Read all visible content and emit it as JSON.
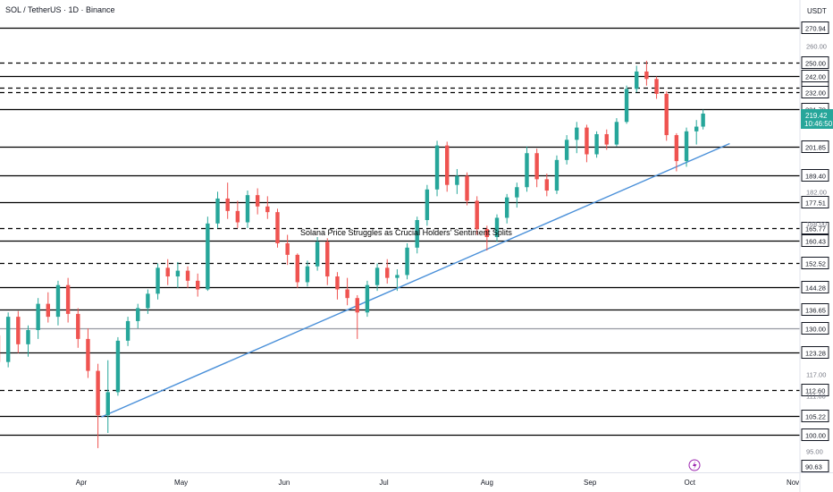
{
  "header": {
    "symbol": "SOL / TetherUS · 1D · Binance",
    "currency": "USDT"
  },
  "annotation": {
    "text": "Solana Price Struggles as Crucial Holders' Sentiment Splits"
  },
  "colors": {
    "up": "#26a69a",
    "down": "#ef5350",
    "trendline": "#4a90d9",
    "level": "#000000",
    "last_price_bg": "#26a69a"
  },
  "last_price": {
    "value": "219.42",
    "countdown": "10:46:50"
  },
  "chart_data": {
    "type": "candlestick",
    "title": "",
    "y_axis_ticks": [
      {
        "value": 260.0,
        "label": "260.00"
      },
      {
        "value": 182.0,
        "label": "182.00"
      },
      {
        "value": 168.0,
        "label": "168.00"
      },
      {
        "value": 117.0,
        "label": "117.00"
      },
      {
        "value": 111.0,
        "label": "111.00"
      },
      {
        "value": 95.0,
        "label": "95.00"
      }
    ],
    "x_axis_ticks": [
      {
        "label": "Apr",
        "date": "2025-04-01"
      },
      {
        "label": "May",
        "date": "2025-05-01"
      },
      {
        "label": "Jun",
        "date": "2025-06-01"
      },
      {
        "label": "Jul",
        "date": "2025-07-01"
      },
      {
        "label": "Aug",
        "date": "2025-08-01"
      },
      {
        "label": "Sep",
        "date": "2025-09-01"
      },
      {
        "label": "Oct",
        "date": "2025-10-01"
      },
      {
        "label": "Nov",
        "date": "2025-11-01"
      }
    ],
    "horizontal_levels": [
      {
        "value": 270.94,
        "label": "270.94",
        "style": "solid"
      },
      {
        "value": 250.0,
        "label": "250.00",
        "style": "dashed"
      },
      {
        "value": 242.0,
        "label": "242.00",
        "style": "solid"
      },
      {
        "value": 235.0,
        "label": "235.00",
        "style": "dashed"
      },
      {
        "value": 232.0,
        "label": "232.00",
        "style": "dashed"
      },
      {
        "value": 221.78,
        "label": "221.78",
        "style": "solid"
      },
      {
        "value": 201.85,
        "label": "201.85",
        "style": "solid"
      },
      {
        "value": 189.4,
        "label": "189.40",
        "style": "solid"
      },
      {
        "value": 177.51,
        "label": "177.51",
        "style": "solid"
      },
      {
        "value": 165.77,
        "label": "165.77",
        "style": "dashed"
      },
      {
        "value": 160.43,
        "label": "160.43",
        "style": "solid"
      },
      {
        "value": 152.52,
        "label": "152.52",
        "style": "dashed"
      },
      {
        "value": 144.28,
        "label": "144.28",
        "style": "solid"
      },
      {
        "value": 136.65,
        "label": "136.65",
        "style": "solid"
      },
      {
        "value": 130.0,
        "label": "130.00",
        "style": "solid_gray"
      },
      {
        "value": 123.28,
        "label": "123.28",
        "style": "solid"
      },
      {
        "value": 112.6,
        "label": "112.60",
        "style": "dashed"
      },
      {
        "value": 105.22,
        "label": "105.22",
        "style": "solid"
      },
      {
        "value": 100.0,
        "label": "100.00",
        "style": "solid"
      },
      {
        "value": 90.63,
        "label": "90.63",
        "style": "box_bottom"
      }
    ],
    "trendline": [
      {
        "date": "2025-04-07",
        "price": 105.0
      },
      {
        "date": "2025-10-13",
        "price": 203.5
      }
    ],
    "candles": [
      {
        "date": "2025-03-01",
        "o": 125.0,
        "h": 135.5,
        "l": 120.0,
        "c": 132.5
      },
      {
        "date": "2025-03-04",
        "o": 132.5,
        "h": 137.0,
        "l": 125.0,
        "c": 128.0
      },
      {
        "date": "2025-03-07",
        "o": 128.0,
        "h": 129.5,
        "l": 117.0,
        "c": 120.5
      },
      {
        "date": "2025-03-10",
        "o": 120.5,
        "h": 135.5,
        "l": 119.0,
        "c": 134.0
      },
      {
        "date": "2025-03-13",
        "o": 134.0,
        "h": 136.0,
        "l": 123.0,
        "c": 125.5
      },
      {
        "date": "2025-03-16",
        "o": 125.5,
        "h": 131.0,
        "l": 122.0,
        "c": 129.5
      },
      {
        "date": "2025-03-19",
        "o": 129.5,
        "h": 140.5,
        "l": 127.0,
        "c": 138.5
      },
      {
        "date": "2025-03-22",
        "o": 138.5,
        "h": 142.5,
        "l": 132.0,
        "c": 134.0
      },
      {
        "date": "2025-03-25",
        "o": 134.0,
        "h": 146.5,
        "l": 131.0,
        "c": 145.0
      },
      {
        "date": "2025-03-28",
        "o": 145.0,
        "h": 147.5,
        "l": 132.0,
        "c": 135.0
      },
      {
        "date": "2025-03-31",
        "o": 135.0,
        "h": 137.0,
        "l": 124.5,
        "c": 127.0
      },
      {
        "date": "2025-04-03",
        "o": 127.0,
        "h": 130.0,
        "l": 116.0,
        "c": 118.0
      },
      {
        "date": "2025-04-06",
        "o": 118.0,
        "h": 120.0,
        "l": 96.0,
        "c": 105.5
      },
      {
        "date": "2025-04-09",
        "o": 105.5,
        "h": 121.0,
        "l": 100.5,
        "c": 112.0
      },
      {
        "date": "2025-04-12",
        "o": 112.0,
        "h": 127.5,
        "l": 111.0,
        "c": 126.5
      },
      {
        "date": "2025-04-15",
        "o": 126.5,
        "h": 134.0,
        "l": 125.0,
        "c": 132.5
      },
      {
        "date": "2025-04-18",
        "o": 132.5,
        "h": 138.5,
        "l": 130.0,
        "c": 137.0
      },
      {
        "date": "2025-04-21",
        "o": 137.0,
        "h": 143.5,
        "l": 135.0,
        "c": 142.0
      },
      {
        "date": "2025-04-24",
        "o": 142.0,
        "h": 152.5,
        "l": 140.0,
        "c": 151.0
      },
      {
        "date": "2025-04-27",
        "o": 151.0,
        "h": 154.0,
        "l": 145.0,
        "c": 148.0
      },
      {
        "date": "2025-04-30",
        "o": 148.0,
        "h": 153.0,
        "l": 144.0,
        "c": 150.0
      },
      {
        "date": "2025-05-03",
        "o": 150.0,
        "h": 151.5,
        "l": 144.0,
        "c": 146.5
      },
      {
        "date": "2025-05-06",
        "o": 146.5,
        "h": 149.0,
        "l": 141.0,
        "c": 143.5
      },
      {
        "date": "2025-05-09",
        "o": 143.5,
        "h": 171.0,
        "l": 143.0,
        "c": 168.0
      },
      {
        "date": "2025-05-12",
        "o": 168.0,
        "h": 182.0,
        "l": 166.0,
        "c": 179.0
      },
      {
        "date": "2025-05-15",
        "o": 179.0,
        "h": 186.0,
        "l": 170.0,
        "c": 173.5
      },
      {
        "date": "2025-05-18",
        "o": 173.5,
        "h": 178.0,
        "l": 166.0,
        "c": 168.5
      },
      {
        "date": "2025-05-21",
        "o": 168.5,
        "h": 182.5,
        "l": 166.0,
        "c": 180.5
      },
      {
        "date": "2025-05-24",
        "o": 180.5,
        "h": 183.5,
        "l": 172.0,
        "c": 175.5
      },
      {
        "date": "2025-05-27",
        "o": 175.5,
        "h": 180.0,
        "l": 170.0,
        "c": 173.0
      },
      {
        "date": "2025-05-30",
        "o": 173.0,
        "h": 174.5,
        "l": 158.0,
        "c": 159.5
      },
      {
        "date": "2025-06-02",
        "o": 159.5,
        "h": 163.0,
        "l": 152.0,
        "c": 155.5
      },
      {
        "date": "2025-06-05",
        "o": 155.5,
        "h": 156.0,
        "l": 144.0,
        "c": 146.0
      },
      {
        "date": "2025-06-08",
        "o": 146.0,
        "h": 153.5,
        "l": 144.5,
        "c": 151.5
      },
      {
        "date": "2025-06-11",
        "o": 151.5,
        "h": 162.0,
        "l": 150.0,
        "c": 160.0
      },
      {
        "date": "2025-06-14",
        "o": 160.0,
        "h": 161.5,
        "l": 145.0,
        "c": 148.0
      },
      {
        "date": "2025-06-17",
        "o": 148.0,
        "h": 149.5,
        "l": 140.0,
        "c": 143.5
      },
      {
        "date": "2025-06-20",
        "o": 143.5,
        "h": 147.5,
        "l": 138.0,
        "c": 140.5
      },
      {
        "date": "2025-06-23",
        "o": 140.5,
        "h": 141.5,
        "l": 127.0,
        "c": 135.5
      },
      {
        "date": "2025-06-26",
        "o": 135.5,
        "h": 146.5,
        "l": 134.0,
        "c": 145.0
      },
      {
        "date": "2025-06-29",
        "o": 145.0,
        "h": 152.5,
        "l": 143.0,
        "c": 151.0
      },
      {
        "date": "2025-07-02",
        "o": 151.0,
        "h": 154.0,
        "l": 145.5,
        "c": 147.5
      },
      {
        "date": "2025-07-05",
        "o": 147.5,
        "h": 150.5,
        "l": 143.0,
        "c": 148.5
      },
      {
        "date": "2025-07-08",
        "o": 148.5,
        "h": 159.5,
        "l": 147.0,
        "c": 158.0
      },
      {
        "date": "2025-07-11",
        "o": 158.0,
        "h": 171.0,
        "l": 156.0,
        "c": 169.5
      },
      {
        "date": "2025-07-14",
        "o": 169.5,
        "h": 185.0,
        "l": 167.0,
        "c": 183.0
      },
      {
        "date": "2025-07-17",
        "o": 183.0,
        "h": 205.0,
        "l": 180.0,
        "c": 202.5
      },
      {
        "date": "2025-07-20",
        "o": 202.5,
        "h": 204.5,
        "l": 182.0,
        "c": 185.0
      },
      {
        "date": "2025-07-23",
        "o": 185.0,
        "h": 192.0,
        "l": 181.0,
        "c": 189.0
      },
      {
        "date": "2025-07-26",
        "o": 189.0,
        "h": 190.5,
        "l": 176.0,
        "c": 178.0
      },
      {
        "date": "2025-07-29",
        "o": 178.0,
        "h": 180.0,
        "l": 163.0,
        "c": 165.5
      },
      {
        "date": "2025-08-01",
        "o": 165.5,
        "h": 167.0,
        "l": 157.0,
        "c": 162.0
      },
      {
        "date": "2025-08-04",
        "o": 162.0,
        "h": 172.0,
        "l": 160.0,
        "c": 170.5
      },
      {
        "date": "2025-08-07",
        "o": 170.5,
        "h": 181.0,
        "l": 168.0,
        "c": 179.5
      },
      {
        "date": "2025-08-10",
        "o": 179.5,
        "h": 186.0,
        "l": 175.0,
        "c": 184.0
      },
      {
        "date": "2025-08-13",
        "o": 184.0,
        "h": 202.0,
        "l": 182.0,
        "c": 199.0
      },
      {
        "date": "2025-08-16",
        "o": 199.0,
        "h": 201.0,
        "l": 184.0,
        "c": 187.5
      },
      {
        "date": "2025-08-19",
        "o": 187.5,
        "h": 190.0,
        "l": 180.0,
        "c": 182.5
      },
      {
        "date": "2025-08-22",
        "o": 182.5,
        "h": 198.0,
        "l": 181.0,
        "c": 196.0
      },
      {
        "date": "2025-08-25",
        "o": 196.0,
        "h": 208.0,
        "l": 194.0,
        "c": 205.5
      },
      {
        "date": "2025-08-28",
        "o": 205.5,
        "h": 215.0,
        "l": 199.0,
        "c": 212.0
      },
      {
        "date": "2025-08-31",
        "o": 212.0,
        "h": 213.5,
        "l": 195.0,
        "c": 198.5
      },
      {
        "date": "2025-09-03",
        "o": 198.5,
        "h": 210.0,
        "l": 197.0,
        "c": 208.5
      },
      {
        "date": "2025-09-06",
        "o": 208.5,
        "h": 211.0,
        "l": 200.5,
        "c": 203.0
      },
      {
        "date": "2025-09-09",
        "o": 203.0,
        "h": 217.0,
        "l": 202.0,
        "c": 215.0
      },
      {
        "date": "2025-09-12",
        "o": 215.0,
        "h": 236.0,
        "l": 214.0,
        "c": 234.0
      },
      {
        "date": "2025-09-15",
        "o": 234.0,
        "h": 248.0,
        "l": 232.0,
        "c": 244.5
      },
      {
        "date": "2025-09-18",
        "o": 244.5,
        "h": 251.0,
        "l": 236.0,
        "c": 240.0
      },
      {
        "date": "2025-09-21",
        "o": 240.0,
        "h": 241.5,
        "l": 228.0,
        "c": 231.0
      },
      {
        "date": "2025-09-24",
        "o": 231.0,
        "h": 232.5,
        "l": 205.0,
        "c": 208.0
      },
      {
        "date": "2025-09-27",
        "o": 208.0,
        "h": 209.0,
        "l": 191.0,
        "c": 195.5
      },
      {
        "date": "2025-09-30",
        "o": 195.5,
        "h": 212.0,
        "l": 193.0,
        "c": 210.0
      },
      {
        "date": "2025-10-03",
        "o": 210.0,
        "h": 216.0,
        "l": 203.0,
        "c": 212.5
      },
      {
        "date": "2025-10-05",
        "o": 212.5,
        "h": 221.5,
        "l": 211.0,
        "c": 219.42
      }
    ]
  }
}
